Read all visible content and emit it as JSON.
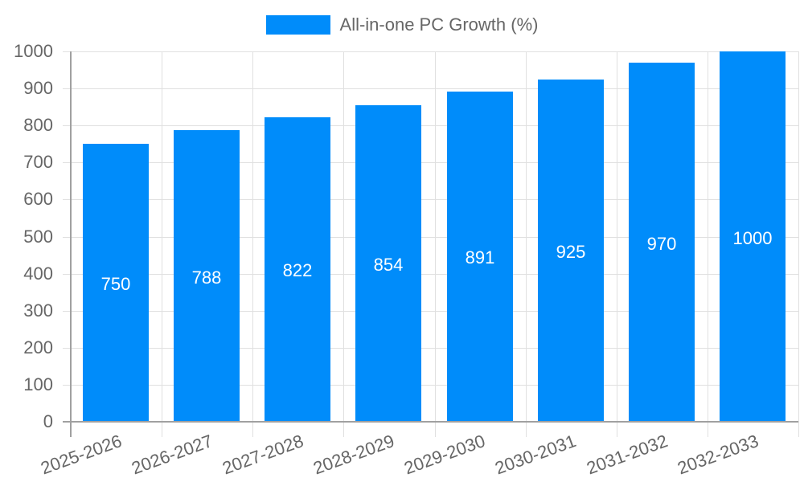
{
  "legend": {
    "label": "All-in-one PC Growth (%)",
    "color": "#008cfa"
  },
  "y_axis": {
    "ticks": [
      "0",
      "100",
      "200",
      "300",
      "400",
      "500",
      "600",
      "700",
      "800",
      "900",
      "1000"
    ]
  },
  "x_axis": {
    "ticks": [
      "2025-2026",
      "2026-2027",
      "2027-2028",
      "2028-2029",
      "2029-2030",
      "2030-2031",
      "2031-2032",
      "2032-2033"
    ]
  },
  "bars": [
    {
      "category": "2025-2026",
      "label": "750"
    },
    {
      "category": "2026-2027",
      "label": "788"
    },
    {
      "category": "2027-2028",
      "label": "822"
    },
    {
      "category": "2028-2029",
      "label": "854"
    },
    {
      "category": "2029-2030",
      "label": "891"
    },
    {
      "category": "2030-2031",
      "label": "925"
    },
    {
      "category": "2031-2032",
      "label": "970"
    },
    {
      "category": "2032-2033",
      "label": "1000"
    }
  ],
  "chart_data": {
    "type": "bar",
    "title": "",
    "categories": [
      "2025-2026",
      "2026-2027",
      "2027-2028",
      "2028-2029",
      "2029-2030",
      "2030-2031",
      "2031-2032",
      "2032-2033"
    ],
    "series": [
      {
        "name": "All-in-one PC Growth (%)",
        "color": "#008cfa",
        "values": [
          750,
          788,
          822,
          854,
          891,
          925,
          970,
          1000
        ]
      }
    ],
    "xlabel": "",
    "ylabel": "",
    "ylim": [
      0,
      1000
    ],
    "yticks": [
      0,
      100,
      200,
      300,
      400,
      500,
      600,
      700,
      800,
      900,
      1000
    ],
    "grid": true,
    "legend_position": "top",
    "data_labels": true
  }
}
